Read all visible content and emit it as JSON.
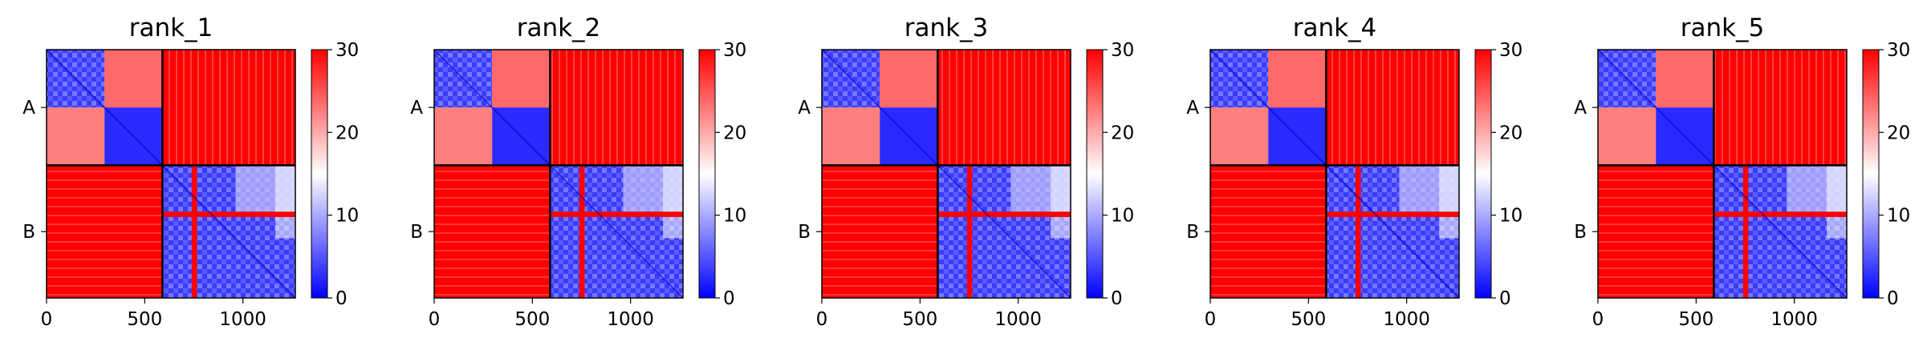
{
  "chart_data": {
    "type": "heatmap",
    "colormap": {
      "name": "bwr",
      "low": "#0000ff",
      "mid": "#ffffff",
      "high": "#ff0000"
    },
    "colorbar": {
      "range": [
        0,
        30
      ],
      "ticks": [
        "0",
        "10",
        "20",
        "30"
      ]
    },
    "x_axis": {
      "range": [
        0,
        1267
      ],
      "ticks": [
        0,
        500,
        1000
      ],
      "tick_labels": [
        "0",
        "500",
        "1000"
      ]
    },
    "y_axis": {
      "tick_labels": [
        "A",
        "B"
      ]
    },
    "segments": [
      {
        "label": "A",
        "start": 0,
        "end": 590
      },
      {
        "label": "B",
        "start": 590,
        "end": 1267
      }
    ],
    "block_mean_values": {
      "A-A": 8,
      "A-B": 30,
      "B-A": 30,
      "B-B": 8
    },
    "panels": [
      {
        "title": "rank_1"
      },
      {
        "title": "rank_2"
      },
      {
        "title": "rank_3"
      },
      {
        "title": "rank_4"
      },
      {
        "title": "rank_5"
      }
    ]
  }
}
